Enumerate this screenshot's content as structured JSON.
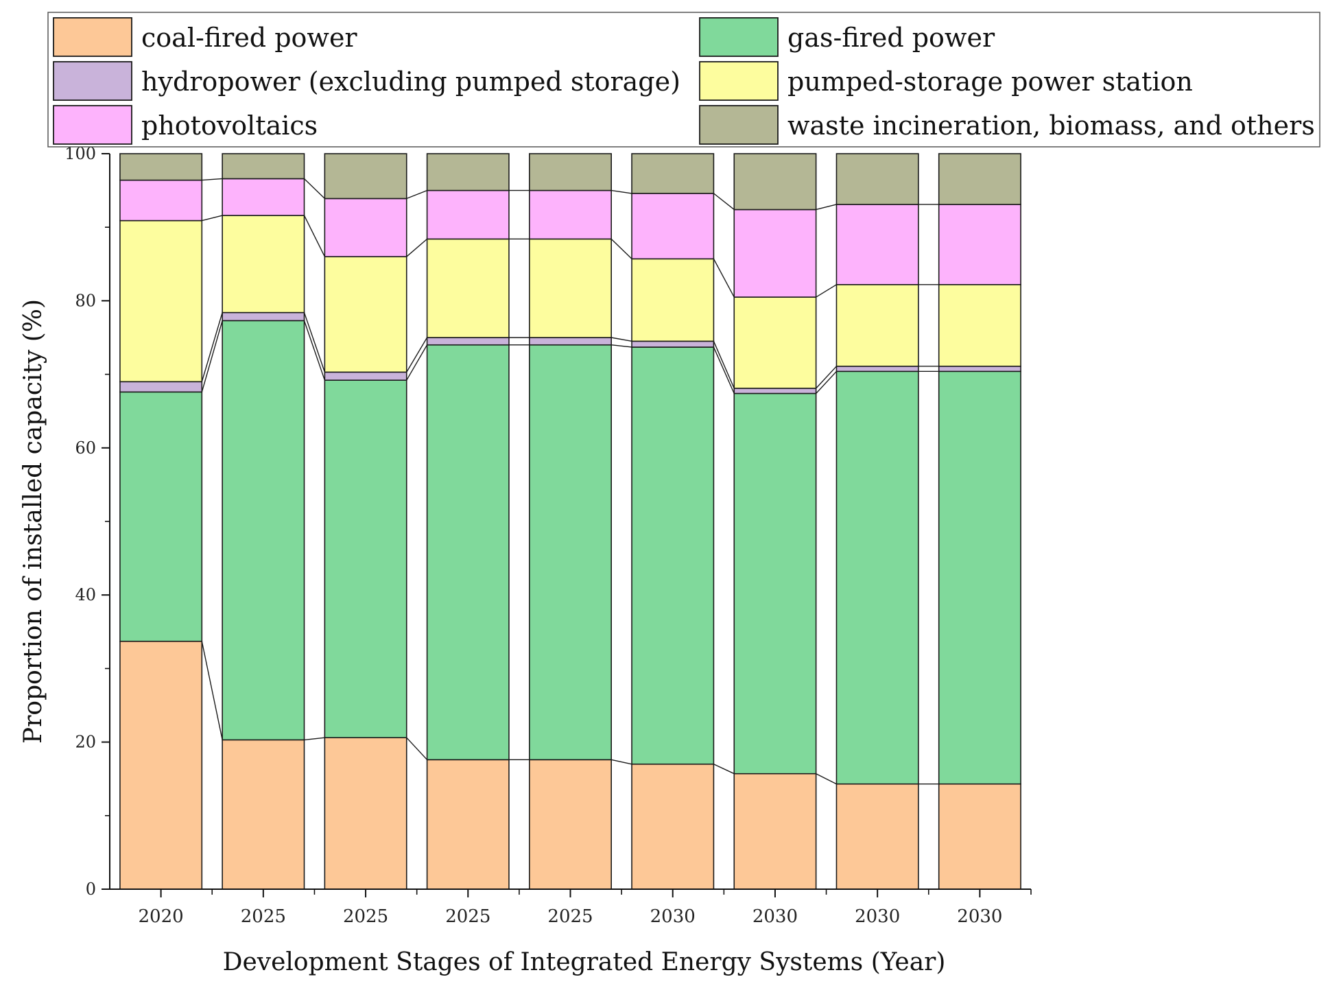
{
  "chart_data": {
    "type": "bar",
    "stacked": true,
    "percent_stacked": true,
    "xlabel": "Development Stages of Integrated Energy Systems (Year)",
    "ylabel": "Proportion of installed capacity (%)",
    "ylim": [
      0,
      100
    ],
    "yticks": [
      0,
      20,
      40,
      60,
      80,
      100
    ],
    "categories": [
      "2020",
      "2025",
      "2025",
      "2025",
      "2025",
      "2030",
      "2030",
      "2030",
      "2030"
    ],
    "series": [
      {
        "name": "coal-fired power",
        "color": "#FDC897",
        "values": [
          33.7,
          20.3,
          20.6,
          17.6,
          17.6,
          17.0,
          15.7,
          14.3,
          14.3
        ]
      },
      {
        "name": "gas-fired power",
        "color": "#80D99B",
        "values": [
          33.9,
          57.0,
          48.6,
          56.4,
          56.4,
          56.7,
          51.7,
          56.1,
          56.1
        ]
      },
      {
        "name": "hydropower (excluding pumped storage)",
        "color": "#C9B3DA",
        "values": [
          1.4,
          1.1,
          1.1,
          1.0,
          1.0,
          0.8,
          0.7,
          0.7,
          0.7
        ]
      },
      {
        "name": "pumped-storage power station",
        "color": "#FDFD9E",
        "values": [
          21.9,
          13.2,
          15.7,
          13.4,
          13.4,
          11.2,
          12.4,
          11.1,
          11.1
        ]
      },
      {
        "name": "photovoltaics",
        "color": "#FDB3FC",
        "values": [
          5.5,
          5.0,
          7.9,
          6.6,
          6.6,
          8.9,
          11.9,
          10.9,
          10.9
        ]
      },
      {
        "name": "waste incineration, biomass, and others",
        "color": "#B4B795",
        "values": [
          3.6,
          3.4,
          6.1,
          5.0,
          5.0,
          5.4,
          7.6,
          6.9,
          6.9
        ]
      }
    ],
    "legend": {
      "placement": "top",
      "columns": 2,
      "order": [
        0,
        1,
        2,
        3,
        4,
        5
      ]
    },
    "connector_lines": true,
    "grid": false
  }
}
